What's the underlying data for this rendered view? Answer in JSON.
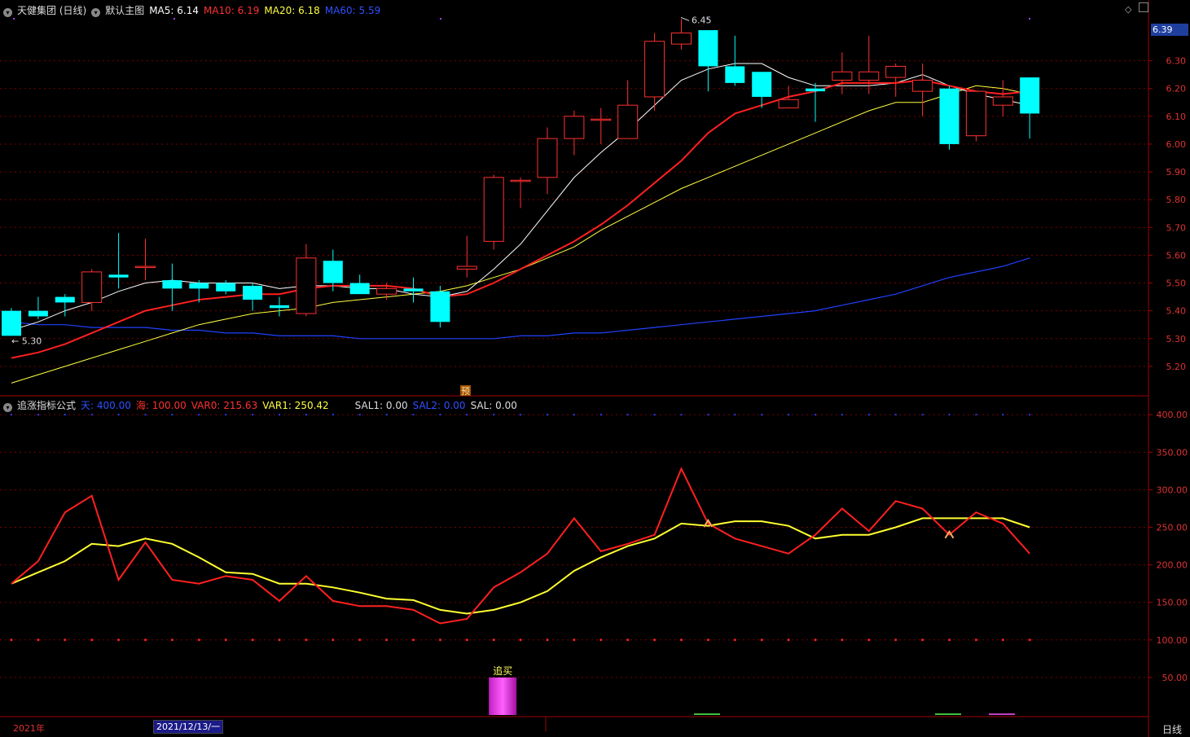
{
  "header": {
    "stock": "天健集团 (日线)",
    "template": "默认主图",
    "ma5": "MA5: 6.14",
    "ma10": "MA10: 6.19",
    "ma20": "MA20: 6.18",
    "ma60": "MA60: 5.59"
  },
  "indicator_header": {
    "name": "追涨指标公式",
    "tian": "天: 400.00",
    "hai": "海: 100.00",
    "var0": "VAR0: 215.63",
    "var1": "VAR1: 250.42",
    "sal1": "SAL1: 0.00",
    "sal2": "SAL2: 0.00",
    "sal": "SAL: 0.00"
  },
  "price_tag": "6.39",
  "high_label": "6.45",
  "low_label": "5.30",
  "pre_marker": "预",
  "signal_label": "追买",
  "year_label": "2021年",
  "date_cursor": "2021/12/13/一",
  "period": "日线",
  "colors": {
    "up": "#ff3030",
    "down": "#00ffff",
    "ma5": "#ffffff",
    "ma10": "#ff2020",
    "ma20": "#ffff40",
    "ma60": "#2040ff",
    "var0": "#ff2020",
    "var1": "#ffff30",
    "grid": "#7a0000"
  },
  "price_axis": {
    "ticks": [
      "6.30",
      "6.20",
      "6.10",
      "6.00",
      "5.90",
      "5.80",
      "5.70",
      "5.60",
      "5.50",
      "5.40",
      "5.30",
      "5.20"
    ],
    "min": 5.1,
    "max": 6.46
  },
  "ind_axis": {
    "ticks": [
      "400.00",
      "350.00",
      "300.00",
      "250.00",
      "200.00",
      "150.00",
      "100.00",
      "50.00"
    ],
    "min": 0,
    "max": 410
  },
  "chart_data": {
    "type": "candlestick",
    "candles": [
      {
        "o": 5.4,
        "h": 5.41,
        "l": 5.31,
        "c": 5.31
      },
      {
        "o": 5.4,
        "h": 5.45,
        "l": 5.37,
        "c": 5.38
      },
      {
        "o": 5.45,
        "h": 5.46,
        "l": 5.38,
        "c": 5.43
      },
      {
        "o": 5.43,
        "h": 5.55,
        "l": 5.4,
        "c": 5.54
      },
      {
        "o": 5.53,
        "h": 5.68,
        "l": 5.48,
        "c": 5.52
      },
      {
        "o": 5.56,
        "h": 5.66,
        "l": 5.51,
        "c": 5.56
      },
      {
        "o": 5.51,
        "h": 5.57,
        "l": 5.4,
        "c": 5.48
      },
      {
        "o": 5.5,
        "h": 5.51,
        "l": 5.43,
        "c": 5.48
      },
      {
        "o": 5.5,
        "h": 5.51,
        "l": 5.46,
        "c": 5.47
      },
      {
        "o": 5.49,
        "h": 5.5,
        "l": 5.4,
        "c": 5.44
      },
      {
        "o": 5.42,
        "h": 5.45,
        "l": 5.38,
        "c": 5.41
      },
      {
        "o": 5.39,
        "h": 5.64,
        "l": 5.38,
        "c": 5.59
      },
      {
        "o": 5.58,
        "h": 5.62,
        "l": 5.47,
        "c": 5.5
      },
      {
        "o": 5.5,
        "h": 5.53,
        "l": 5.46,
        "c": 5.46
      },
      {
        "o": 5.46,
        "h": 5.5,
        "l": 5.44,
        "c": 5.48
      },
      {
        "o": 5.48,
        "h": 5.52,
        "l": 5.43,
        "c": 5.47
      },
      {
        "o": 5.47,
        "h": 5.49,
        "l": 5.34,
        "c": 5.36
      },
      {
        "o": 5.55,
        "h": 5.67,
        "l": 5.52,
        "c": 5.56
      },
      {
        "o": 5.65,
        "h": 5.89,
        "l": 5.62,
        "c": 5.88
      },
      {
        "o": 5.87,
        "h": 5.88,
        "l": 5.77,
        "c": 5.87
      },
      {
        "o": 5.88,
        "h": 6.06,
        "l": 5.82,
        "c": 6.02
      },
      {
        "o": 6.02,
        "h": 6.12,
        "l": 5.96,
        "c": 6.1
      },
      {
        "o": 6.09,
        "h": 6.13,
        "l": 6.0,
        "c": 6.09
      },
      {
        "o": 6.02,
        "h": 6.23,
        "l": 6.02,
        "c": 6.14
      },
      {
        "o": 6.17,
        "h": 6.4,
        "l": 6.12,
        "c": 6.37
      },
      {
        "o": 6.36,
        "h": 6.45,
        "l": 6.34,
        "c": 6.4
      },
      {
        "o": 6.41,
        "h": 6.41,
        "l": 6.19,
        "c": 6.28
      },
      {
        "o": 6.28,
        "h": 6.39,
        "l": 6.21,
        "c": 6.22
      },
      {
        "o": 6.26,
        "h": 6.26,
        "l": 6.13,
        "c": 6.17
      },
      {
        "o": 6.13,
        "h": 6.21,
        "l": 6.13,
        "c": 6.16
      },
      {
        "o": 6.2,
        "h": 6.22,
        "l": 6.08,
        "c": 6.19
      },
      {
        "o": 6.23,
        "h": 6.33,
        "l": 6.18,
        "c": 6.26
      },
      {
        "o": 6.23,
        "h": 6.39,
        "l": 6.18,
        "c": 6.26
      },
      {
        "o": 6.24,
        "h": 6.29,
        "l": 6.17,
        "c": 6.28
      },
      {
        "o": 6.19,
        "h": 6.29,
        "l": 6.1,
        "c": 6.23
      },
      {
        "o": 6.2,
        "h": 6.21,
        "l": 5.98,
        "c": 6.0
      },
      {
        "o": 6.03,
        "h": 6.19,
        "l": 6.01,
        "c": 6.19
      },
      {
        "o": 6.14,
        "h": 6.23,
        "l": 6.1,
        "c": 6.17
      },
      {
        "o": 6.24,
        "h": 6.24,
        "l": 6.02,
        "c": 6.11
      }
    ],
    "ma5": [
      5.33,
      5.36,
      5.4,
      5.43,
      5.47,
      5.5,
      5.51,
      5.5,
      5.5,
      5.5,
      5.48,
      5.49,
      5.49,
      5.48,
      5.48,
      5.46,
      5.45,
      5.47,
      5.55,
      5.64,
      5.76,
      5.88,
      5.97,
      6.05,
      6.14,
      6.23,
      6.27,
      6.29,
      6.29,
      6.24,
      6.21,
      6.21,
      6.21,
      6.22,
      6.25,
      6.21,
      6.18,
      6.16,
      6.14
    ],
    "ma10": [
      5.23,
      5.25,
      5.28,
      5.32,
      5.36,
      5.4,
      5.42,
      5.44,
      5.45,
      5.46,
      5.46,
      5.48,
      5.49,
      5.49,
      5.49,
      5.48,
      5.45,
      5.46,
      5.5,
      5.55,
      5.6,
      5.65,
      5.71,
      5.78,
      5.86,
      5.94,
      6.04,
      6.11,
      6.14,
      6.17,
      6.19,
      6.22,
      6.22,
      6.22,
      6.23,
      6.21,
      6.19,
      6.18,
      6.19
    ],
    "ma20": [
      5.14,
      5.17,
      5.2,
      5.23,
      5.26,
      5.29,
      5.32,
      5.35,
      5.37,
      5.39,
      5.4,
      5.41,
      5.43,
      5.44,
      5.45,
      5.46,
      5.47,
      5.49,
      5.52,
      5.55,
      5.59,
      5.63,
      5.69,
      5.74,
      5.79,
      5.84,
      5.88,
      5.92,
      5.96,
      6.0,
      6.04,
      6.08,
      6.12,
      6.15,
      6.15,
      6.18,
      6.21,
      6.2,
      6.18
    ],
    "ma60": [
      5.36,
      5.35,
      5.35,
      5.34,
      5.34,
      5.34,
      5.33,
      5.33,
      5.32,
      5.32,
      5.31,
      5.31,
      5.31,
      5.3,
      5.3,
      5.3,
      5.3,
      5.3,
      5.3,
      5.31,
      5.31,
      5.32,
      5.32,
      5.33,
      5.34,
      5.35,
      5.36,
      5.37,
      5.38,
      5.39,
      5.4,
      5.42,
      5.44,
      5.46,
      5.49,
      5.52,
      5.54,
      5.56,
      5.59
    ],
    "var0": [
      175,
      205,
      270,
      292,
      180,
      230,
      180,
      175,
      185,
      180,
      152,
      185,
      152,
      145,
      145,
      140,
      122,
      128,
      170,
      190,
      215,
      262,
      218,
      228,
      240,
      328,
      255,
      235,
      225,
      215,
      240,
      275,
      245,
      285,
      275,
      240,
      270,
      255,
      215
    ],
    "var1": [
      175,
      190,
      205,
      228,
      225,
      235,
      228,
      210,
      190,
      188,
      175,
      175,
      170,
      163,
      155,
      153,
      140,
      135,
      140,
      150,
      165,
      192,
      210,
      225,
      235,
      255,
      252,
      258,
      258,
      252,
      235,
      240,
      240,
      250,
      262,
      262,
      262,
      262,
      250
    ],
    "sal_bar_value": 50
  }
}
